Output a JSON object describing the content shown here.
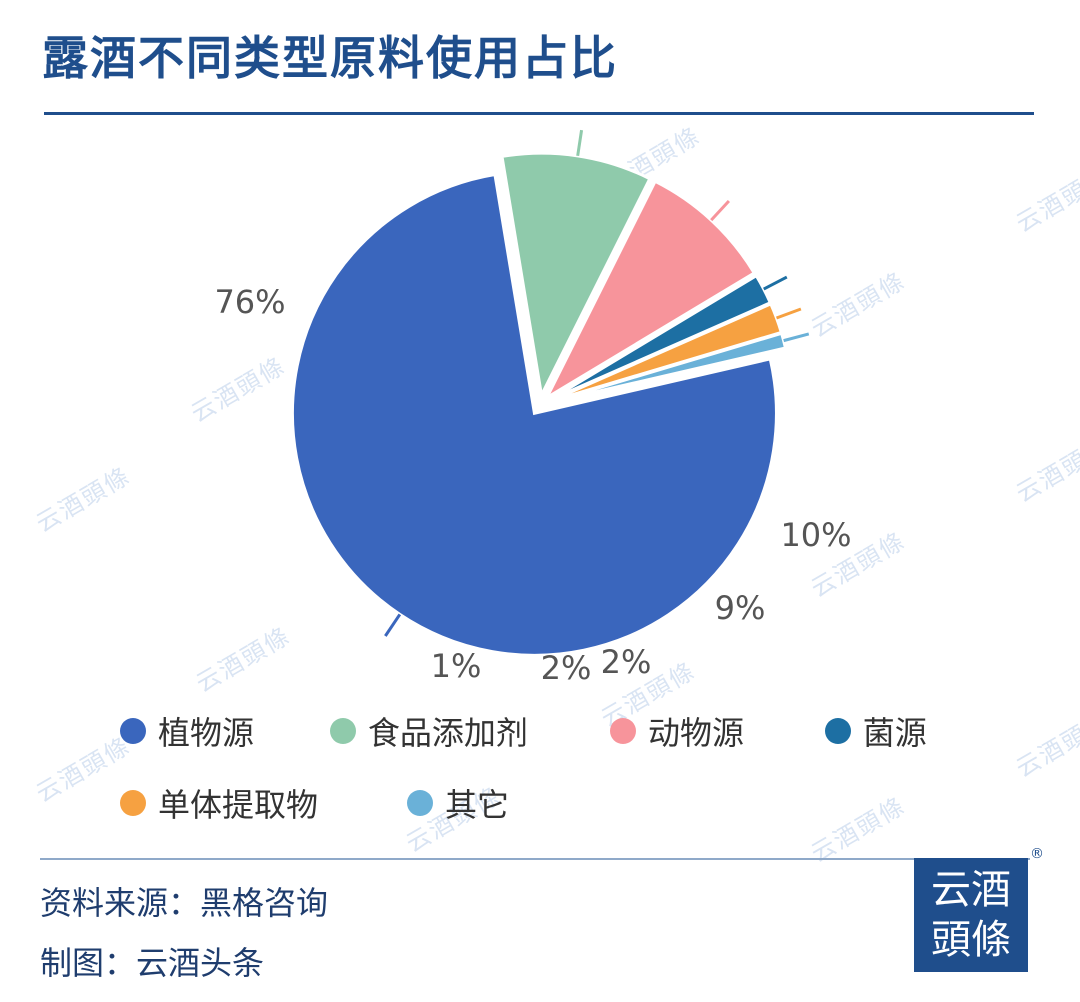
{
  "title": "露酒不同类型原料使用占比",
  "chart_data": {
    "type": "pie",
    "categories": [
      "植物源",
      "食品添加剂",
      "动物源",
      "菌源",
      "单体提取物",
      "其它"
    ],
    "values": [
      76,
      10,
      9,
      2,
      2,
      1
    ],
    "labels": [
      "76%",
      "10%",
      "9%",
      "2%",
      "2%",
      "1%"
    ],
    "colors": [
      "#3a66bd",
      "#8fcaab",
      "#f7949b",
      "#1d6fa3",
      "#f6a141",
      "#6ab1d8"
    ],
    "legend_position": "bottom"
  },
  "legend_rows": [
    [
      0,
      1,
      2,
      3
    ],
    [
      4,
      5
    ]
  ],
  "watermark_text": "云酒頭條",
  "footer": {
    "source": "资料来源：黑格咨询",
    "maker": "制图：云酒头条"
  },
  "logo": {
    "line1": "云酒",
    "line2": "頭條",
    "registered": "®"
  }
}
